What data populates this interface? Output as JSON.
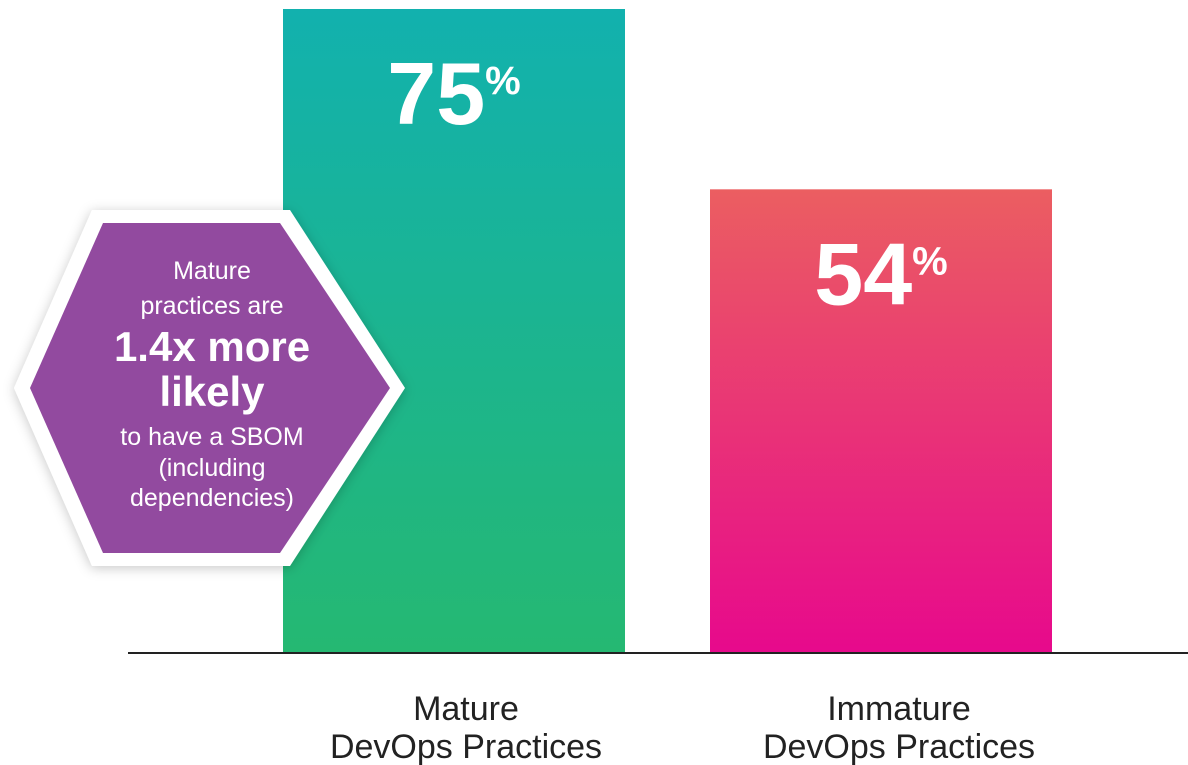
{
  "chart_data": {
    "type": "bar",
    "categories": [
      "Mature DevOps Practices",
      "Immature DevOps Practices"
    ],
    "category_lines": [
      [
        "Mature",
        "DevOps Practices"
      ],
      [
        "Immature",
        "DevOps Practices"
      ]
    ],
    "values": [
      75,
      54
    ],
    "value_suffix": "%",
    "ylim": [
      0,
      75
    ],
    "grid": false,
    "title": "",
    "xlabel": "",
    "ylabel": "",
    "bar_gradients": [
      {
        "top": "#12B1AE",
        "bottom": "#25B872"
      },
      {
        "top": "#EB5E61",
        "bottom": "#E7098C"
      }
    ]
  },
  "callout": {
    "lines": [
      "Mature",
      "practices are",
      "1.4x more",
      "likely",
      "to have a SBOM",
      "(including",
      "dependencies)"
    ],
    "fill": "#924A9F"
  },
  "colors": {
    "axis": "#222222",
    "value_text": "#ffffff"
  }
}
